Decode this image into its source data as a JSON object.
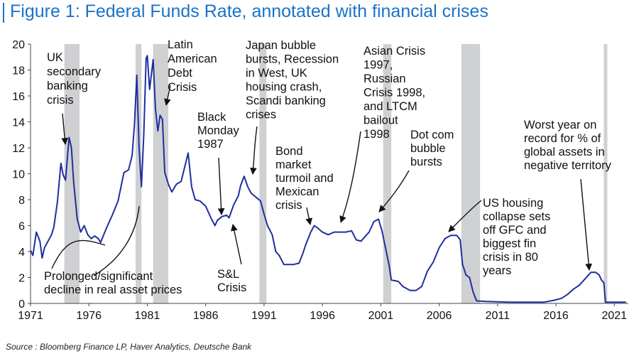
{
  "title": "Figure 1: Federal Funds Rate, annotated with financial crises",
  "source": "Source : Bloomberg Finance LP, Haver Analytics, Deutsche Bank",
  "colors": {
    "title": "#1a73c8",
    "line": "#1f2f9e",
    "shade": "#cfd0d2",
    "text": "#111111"
  },
  "chart_data": {
    "type": "line",
    "title": "Federal Funds Rate",
    "xlabel": "",
    "ylabel": "",
    "xlim": [
      1971,
      2022.2
    ],
    "ylim": [
      0,
      20
    ],
    "x_ticks": [
      1971,
      1976,
      1981,
      1986,
      1991,
      1996,
      2001,
      2006,
      2011,
      2016,
      2021
    ],
    "x_tick_labels": [
      "1971",
      "1976",
      "1981",
      "1986",
      "1991",
      "1996",
      "2001",
      "2006",
      "2011",
      "2016",
      "2021"
    ],
    "y_ticks": [
      0,
      2,
      4,
      6,
      8,
      10,
      12,
      14,
      16,
      18,
      20
    ],
    "y_tick_labels": [
      "0",
      "2",
      "4",
      "6",
      "8",
      "10",
      "12",
      "14",
      "16",
      "18",
      "20"
    ],
    "grid": false,
    "crisis_periods": [
      [
        1973.9,
        1975.2
      ],
      [
        1980.0,
        1980.5
      ],
      [
        1981.5,
        1982.8
      ],
      [
        1990.6,
        1991.2
      ],
      [
        2001.2,
        2001.9
      ],
      [
        2007.9,
        2009.5
      ],
      [
        2020.1,
        2020.4
      ]
    ],
    "series": [
      {
        "name": "Federal Funds Rate",
        "x": [
          1971.0,
          1971.2,
          1971.5,
          1971.8,
          1972.0,
          1972.2,
          1972.5,
          1972.8,
          1973.0,
          1973.3,
          1973.6,
          1973.8,
          1974.0,
          1974.3,
          1974.5,
          1974.7,
          1975.0,
          1975.3,
          1975.6,
          1975.9,
          1976.2,
          1976.5,
          1976.8,
          1977.0,
          1977.5,
          1978.0,
          1978.5,
          1979.0,
          1979.4,
          1979.7,
          1979.9,
          1980.1,
          1980.3,
          1980.5,
          1980.7,
          1980.9,
          1981.0,
          1981.2,
          1981.5,
          1981.7,
          1981.9,
          1982.1,
          1982.3,
          1982.5,
          1982.8,
          1983.1,
          1983.5,
          1983.9,
          1984.2,
          1984.5,
          1984.8,
          1985.1,
          1985.5,
          1986.0,
          1986.5,
          1986.8,
          1987.0,
          1987.4,
          1987.8,
          1988.0,
          1988.4,
          1988.8,
          1989.0,
          1989.3,
          1989.6,
          1989.9,
          1990.3,
          1990.7,
          1991.0,
          1991.3,
          1991.7,
          1992.0,
          1992.3,
          1992.7,
          1993.0,
          1993.5,
          1994.0,
          1994.3,
          1994.6,
          1995.0,
          1995.3,
          1995.6,
          1996.0,
          1996.5,
          1997.0,
          1997.5,
          1998.0,
          1998.5,
          1998.9,
          1999.3,
          1999.7,
          2000.0,
          2000.4,
          2000.8,
          2001.1,
          2001.4,
          2001.7,
          2001.9,
          2002.5,
          2002.9,
          2003.5,
          2004.0,
          2004.5,
          2005.0,
          2005.5,
          2006.0,
          2006.5,
          2007.0,
          2007.5,
          2007.8,
          2008.0,
          2008.3,
          2008.6,
          2008.9,
          2009.2,
          2010.0,
          2012.0,
          2015.0,
          2015.9,
          2016.5,
          2017.0,
          2017.5,
          2018.0,
          2018.5,
          2019.0,
          2019.4,
          2019.7,
          2019.9,
          2020.1,
          2020.25,
          2021.0,
          2022.0
        ],
        "y": [
          4.1,
          3.7,
          5.5,
          4.8,
          3.5,
          4.3,
          4.8,
          5.3,
          5.9,
          7.8,
          10.8,
          9.9,
          9.5,
          12.8,
          12.0,
          9.3,
          6.5,
          5.5,
          6.0,
          5.3,
          5.0,
          5.2,
          5.0,
          4.7,
          5.8,
          6.8,
          7.9,
          10.1,
          10.3,
          11.4,
          13.8,
          17.6,
          12.0,
          9.0,
          13.0,
          18.9,
          19.1,
          16.5,
          18.8,
          15.0,
          13.3,
          14.5,
          14.2,
          10.1,
          9.2,
          8.6,
          9.2,
          9.4,
          10.5,
          11.6,
          9.0,
          8.0,
          7.9,
          7.5,
          6.5,
          6.0,
          6.4,
          6.7,
          6.8,
          6.6,
          7.6,
          8.3,
          9.1,
          9.8,
          9.0,
          8.5,
          8.2,
          7.9,
          6.9,
          6.0,
          5.3,
          4.0,
          3.7,
          3.0,
          3.0,
          3.0,
          3.1,
          3.8,
          4.6,
          5.5,
          6.0,
          5.8,
          5.5,
          5.3,
          5.5,
          5.5,
          5.5,
          5.6,
          4.9,
          4.8,
          5.2,
          5.5,
          6.3,
          6.5,
          5.6,
          4.3,
          3.0,
          1.8,
          1.7,
          1.3,
          1.0,
          1.0,
          1.3,
          2.5,
          3.2,
          4.3,
          5.0,
          5.25,
          5.25,
          4.9,
          3.0,
          2.2,
          2.0,
          0.9,
          0.2,
          0.15,
          0.1,
          0.1,
          0.25,
          0.4,
          0.7,
          1.1,
          1.4,
          1.9,
          2.4,
          2.4,
          2.2,
          1.8,
          1.6,
          0.1,
          0.1,
          0.1
        ]
      }
    ],
    "annotations": [
      {
        "id": "uk-secondary-banking",
        "lines": [
          "UK",
          "secondary",
          "banking",
          "crisis"
        ]
      },
      {
        "id": "latin-american-debt",
        "lines": [
          "Latin",
          "American",
          "Debt",
          "Crisis"
        ]
      },
      {
        "id": "japan-bubble",
        "lines": [
          "Japan bubble",
          "bursts, Recession",
          "in West, UK",
          "housing crash,",
          "Scandi banking",
          "crises"
        ]
      },
      {
        "id": "asian-crisis",
        "lines": [
          "Asian Crisis",
          "1997,",
          "Russian",
          "Crisis 1998,",
          "and LTCM",
          "bailout",
          "1998"
        ]
      },
      {
        "id": "black-monday",
        "lines": [
          "Black",
          "Monday",
          "1987"
        ]
      },
      {
        "id": "bond-market",
        "lines": [
          "Bond",
          "market",
          "turmoil and",
          "Mexican",
          "crisis"
        ]
      },
      {
        "id": "dot-com",
        "lines": [
          "Dot com",
          "bubble",
          "bursts"
        ]
      },
      {
        "id": "worst-year",
        "lines": [
          "Worst year on",
          "record for % of",
          "global assets in",
          "negative territory"
        ]
      },
      {
        "id": "us-housing",
        "lines": [
          "US housing",
          "collapse sets",
          "off GFC and",
          "biggest fin",
          "crisis in 80",
          "years"
        ]
      },
      {
        "id": "sl-crisis",
        "lines": [
          "S&L",
          "Crisis"
        ]
      },
      {
        "id": "prolonged-decline",
        "lines": [
          "Prolonged/significant",
          "decline in real asset prices"
        ]
      }
    ]
  }
}
